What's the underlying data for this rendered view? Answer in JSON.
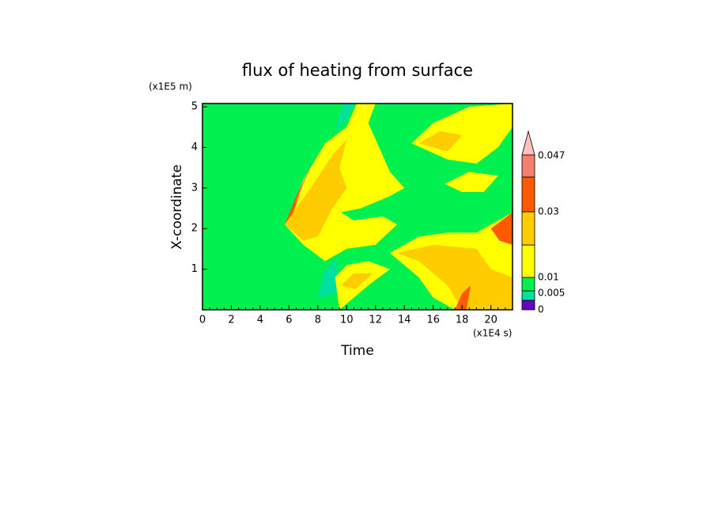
{
  "chart_data": {
    "type": "contour",
    "title": "flux of heating from surface",
    "x_label": "Time",
    "x_unit": "(x1E4 s)",
    "y_label": "X-coordinate",
    "y_unit": "(x1E5 m)",
    "xlim": [
      0,
      21.5
    ],
    "ylim": [
      0,
      5.08
    ],
    "xticks": [
      0,
      2,
      4,
      6,
      8,
      10,
      12,
      14,
      16,
      18,
      20
    ],
    "yticks": [
      1,
      2,
      3,
      4,
      5
    ],
    "colorbar_levels": [
      0,
      0.005,
      0.01,
      0.03,
      0.047
    ],
    "colorbar_colors": [
      "#6a00c8",
      "#00e0a0",
      "#00f050",
      "#ffff00",
      "#ffcc00",
      "#ff5a00",
      "#f08070",
      "#ffc0c0"
    ]
  }
}
